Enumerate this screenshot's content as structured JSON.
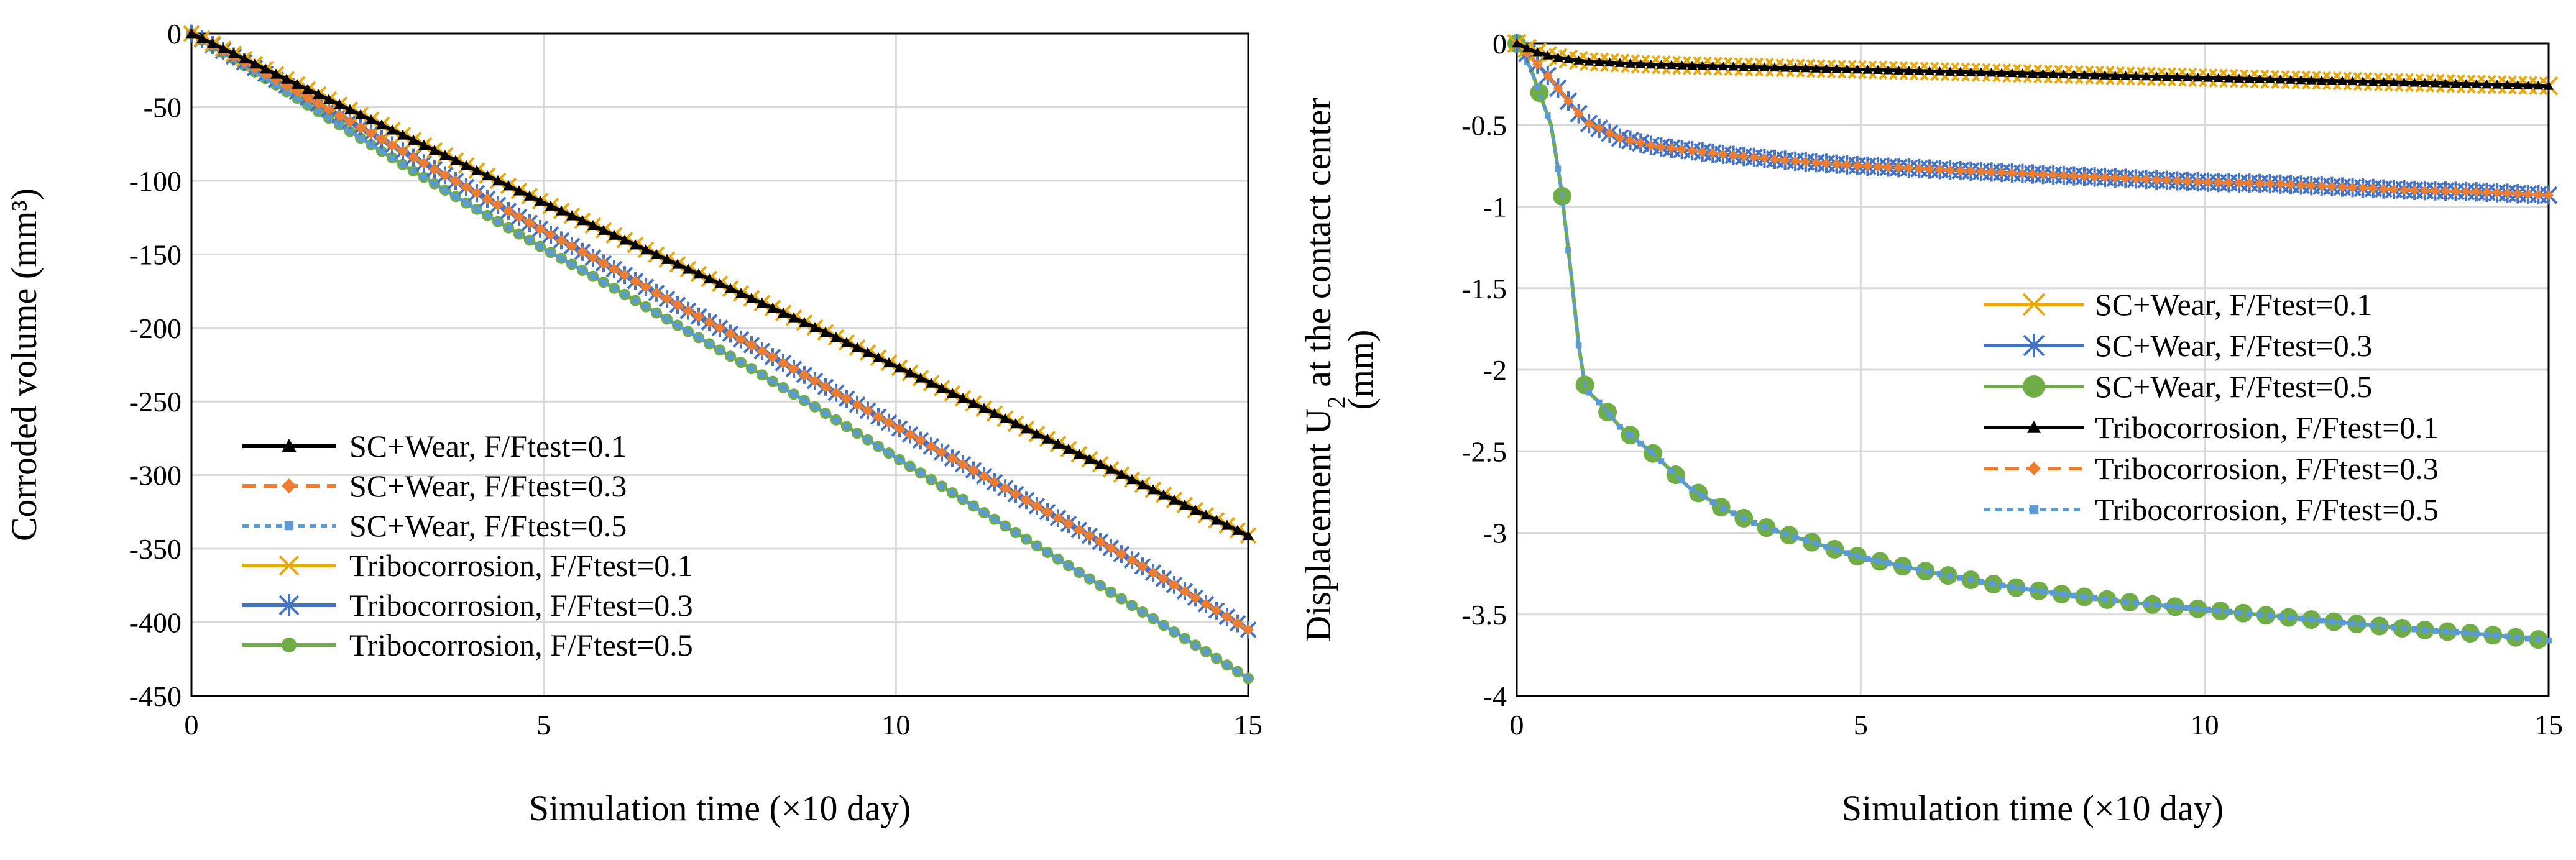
{
  "chart_data": [
    {
      "type": "line",
      "title": "",
      "xlabel": "Simulation time (×10 day)",
      "ylabel": "Corroded volume (mm³)",
      "xlim": [
        0,
        15
      ],
      "ylim": [
        -450,
        0
      ],
      "xticks": [
        0,
        5,
        10,
        15
      ],
      "yticks": [
        0,
        -50,
        -100,
        -150,
        -200,
        -250,
        -300,
        -350,
        -400,
        -450
      ],
      "xtick_labels": [
        "0",
        "5",
        "10",
        "15"
      ],
      "ytick_labels": [
        "0",
        "-50",
        "-100",
        "-150",
        "-200",
        "-250",
        "-300",
        "-350",
        "-400",
        "-450"
      ],
      "grid": true,
      "legend_position": "lower-left",
      "series": [
        {
          "name": "SC+Wear, F/Ftest=0.1",
          "color": "#000000",
          "marker": "triangle",
          "dash": "solid",
          "x": [
            0,
            1,
            2,
            3,
            4,
            5,
            6,
            7,
            8,
            9,
            10,
            11,
            12,
            13,
            14,
            15
          ],
          "y": [
            0,
            -23,
            -46,
            -69,
            -92,
            -115,
            -137,
            -159,
            -181,
            -203,
            -226,
            -249,
            -272,
            -295,
            -318,
            -341
          ]
        },
        {
          "name": "SC+Wear, F/Ftest=0.3",
          "color": "#ED7D31",
          "marker": "diamond",
          "dash": "dash",
          "x": [
            0,
            1,
            2,
            3,
            4,
            5,
            6,
            7,
            8,
            9,
            10,
            11,
            12,
            13,
            14,
            15
          ],
          "y": [
            0,
            -26,
            -53,
            -80,
            -107,
            -134,
            -160,
            -187,
            -213,
            -240,
            -267,
            -294,
            -321,
            -348,
            -376,
            -405
          ]
        },
        {
          "name": "SC+Wear, F/Ftest=0.5",
          "color": "#5B9BD5",
          "marker": "square",
          "dash": "dot",
          "x": [
            0,
            1,
            2,
            3,
            4,
            5,
            6,
            7,
            8,
            9,
            10,
            11,
            12,
            13,
            14,
            15
          ],
          "y": [
            0,
            -29,
            -59,
            -89,
            -118,
            -146,
            -173,
            -201,
            -229,
            -258,
            -288,
            -318,
            -348,
            -378,
            -408,
            -438
          ]
        },
        {
          "name": "Tribocorrosion, F/Ftest=0.1",
          "color": "#E6A80C",
          "marker": "x",
          "dash": "solid",
          "x": [
            0,
            1,
            2,
            3,
            4,
            5,
            6,
            7,
            8,
            9,
            10,
            11,
            12,
            13,
            14,
            15
          ],
          "y": [
            0,
            -23,
            -46,
            -69,
            -92,
            -115,
            -137,
            -159,
            -181,
            -203,
            -226,
            -249,
            -272,
            -295,
            -318,
            -341
          ]
        },
        {
          "name": "Tribocorrosion, F/Ftest=0.3",
          "color": "#4472C4",
          "marker": "star",
          "dash": "solid",
          "x": [
            0,
            1,
            2,
            3,
            4,
            5,
            6,
            7,
            8,
            9,
            10,
            11,
            12,
            13,
            14,
            15
          ],
          "y": [
            0,
            -26,
            -53,
            -80,
            -107,
            -134,
            -160,
            -187,
            -213,
            -240,
            -267,
            -294,
            -321,
            -348,
            -376,
            -405
          ]
        },
        {
          "name": "Tribocorrosion, F/Ftest=0.5",
          "color": "#70AD47",
          "marker": "circle",
          "dash": "solid",
          "x": [
            0,
            1,
            2,
            3,
            4,
            5,
            6,
            7,
            8,
            9,
            10,
            11,
            12,
            13,
            14,
            15
          ],
          "y": [
            0,
            -29,
            -59,
            -89,
            -118,
            -146,
            -173,
            -201,
            -229,
            -258,
            -288,
            -318,
            -348,
            -378,
            -408,
            -438
          ]
        }
      ]
    },
    {
      "type": "line",
      "title": "",
      "xlabel": "Simulation time (×10 day)",
      "ylabel_line1": "Displacement U",
      "ylabel_sub": "2",
      "ylabel_line1_rest": " at the contact center",
      "ylabel_line2": "(mm)",
      "xlim": [
        0,
        15
      ],
      "ylim": [
        -4,
        0
      ],
      "xticks": [
        0,
        5,
        10,
        15
      ],
      "yticks": [
        0,
        -0.5,
        -1,
        -1.5,
        -2,
        -2.5,
        -3,
        -3.5,
        -4
      ],
      "xtick_labels": [
        "0",
        "5",
        "10",
        "15"
      ],
      "ytick_labels": [
        "0",
        "-0.5",
        "-1",
        "-1.5",
        "-2",
        "-2.5",
        "-3",
        "-3.5",
        "-4"
      ],
      "grid": true,
      "legend_position": "center-right",
      "series": [
        {
          "name": "SC+Wear, F/Ftest=0.1",
          "color": "#E6A80C",
          "marker": "x",
          "dash": "solid",
          "x": [
            0,
            0.2,
            0.5,
            1,
            2,
            3,
            4,
            5,
            6,
            7,
            8,
            9,
            10,
            11,
            12,
            13,
            14,
            15
          ],
          "y": [
            0,
            -0.04,
            -0.08,
            -0.11,
            -0.13,
            -0.14,
            -0.15,
            -0.16,
            -0.17,
            -0.18,
            -0.19,
            -0.2,
            -0.21,
            -0.22,
            -0.23,
            -0.24,
            -0.25,
            -0.26
          ]
        },
        {
          "name": "SC+Wear, F/Ftest=0.3",
          "color": "#4472C4",
          "marker": "star",
          "dash": "solid",
          "x": [
            0,
            0.2,
            0.5,
            0.8,
            1,
            1.5,
            2,
            3,
            4,
            5,
            6,
            7,
            8,
            9,
            10,
            11,
            12,
            13,
            14,
            15
          ],
          "y": [
            0,
            -0.08,
            -0.22,
            -0.38,
            -0.48,
            -0.58,
            -0.63,
            -0.68,
            -0.72,
            -0.75,
            -0.77,
            -0.79,
            -0.81,
            -0.83,
            -0.85,
            -0.86,
            -0.88,
            -0.9,
            -0.91,
            -0.93
          ]
        },
        {
          "name": "SC+Wear, F/Ftest=0.5",
          "color": "#70AD47",
          "marker": "circle",
          "dash": "solid",
          "x": [
            0,
            0.2,
            0.5,
            0.65,
            0.8,
            0.9,
            1,
            1.2,
            1.5,
            2,
            2.5,
            3,
            3.5,
            4,
            5,
            6,
            7,
            8,
            9,
            10,
            11,
            12,
            13,
            14,
            15
          ],
          "y": [
            0,
            -0.15,
            -0.5,
            -0.9,
            -1.45,
            -1.85,
            -2.12,
            -2.2,
            -2.35,
            -2.52,
            -2.72,
            -2.85,
            -2.95,
            -3.02,
            -3.15,
            -3.24,
            -3.32,
            -3.38,
            -3.43,
            -3.47,
            -3.51,
            -3.55,
            -3.59,
            -3.62,
            -3.66
          ]
        },
        {
          "name": "Tribocorrosion, F/Ftest=0.1",
          "color": "#000000",
          "marker": "triangle",
          "dash": "solid",
          "x": [
            0,
            0.2,
            0.5,
            1,
            2,
            3,
            4,
            5,
            6,
            7,
            8,
            9,
            10,
            11,
            12,
            13,
            14,
            15
          ],
          "y": [
            0,
            -0.04,
            -0.08,
            -0.11,
            -0.13,
            -0.14,
            -0.15,
            -0.16,
            -0.17,
            -0.18,
            -0.19,
            -0.2,
            -0.21,
            -0.22,
            -0.23,
            -0.24,
            -0.25,
            -0.26
          ]
        },
        {
          "name": "Tribocorrosion, F/Ftest=0.3",
          "color": "#ED7D31",
          "marker": "diamond",
          "dash": "dash",
          "x": [
            0,
            0.2,
            0.5,
            0.8,
            1,
            1.5,
            2,
            3,
            4,
            5,
            6,
            7,
            8,
            9,
            10,
            11,
            12,
            13,
            14,
            15
          ],
          "y": [
            0,
            -0.08,
            -0.22,
            -0.38,
            -0.48,
            -0.58,
            -0.63,
            -0.68,
            -0.72,
            -0.75,
            -0.77,
            -0.79,
            -0.81,
            -0.83,
            -0.85,
            -0.86,
            -0.88,
            -0.9,
            -0.91,
            -0.93
          ]
        },
        {
          "name": "Tribocorrosion, F/Ftest=0.5",
          "color": "#5B9BD5",
          "marker": "square",
          "dash": "dot",
          "x": [
            0,
            0.2,
            0.5,
            0.65,
            0.8,
            0.9,
            1,
            1.2,
            1.5,
            2,
            2.5,
            3,
            3.5,
            4,
            5,
            6,
            7,
            8,
            9,
            10,
            11,
            12,
            13,
            14,
            15
          ],
          "y": [
            0,
            -0.15,
            -0.5,
            -0.9,
            -1.45,
            -1.85,
            -2.12,
            -2.2,
            -2.35,
            -2.52,
            -2.72,
            -2.85,
            -2.95,
            -3.02,
            -3.15,
            -3.24,
            -3.32,
            -3.38,
            -3.43,
            -3.47,
            -3.51,
            -3.55,
            -3.59,
            -3.62,
            -3.66
          ]
        }
      ]
    }
  ]
}
